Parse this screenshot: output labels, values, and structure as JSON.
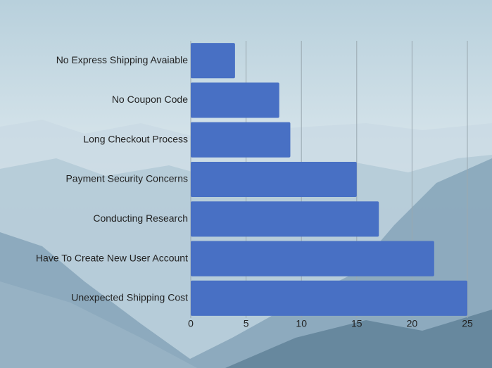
{
  "chart_data": {
    "type": "bar",
    "orientation": "horizontal",
    "categories": [
      "No Express Shipping Avaiable",
      "No Coupon Code",
      "Long Checkout Process",
      "Payment Security Concerns",
      "Conducting Research",
      "Have To Create New User Account",
      "Unexpected Shipping Cost"
    ],
    "values": [
      4,
      8,
      9,
      15,
      17,
      22,
      25
    ],
    "color": "#4870c4",
    "xlim": [
      0,
      25
    ],
    "xticks": [
      0,
      5,
      10,
      15,
      20,
      25
    ],
    "grid": true
  }
}
